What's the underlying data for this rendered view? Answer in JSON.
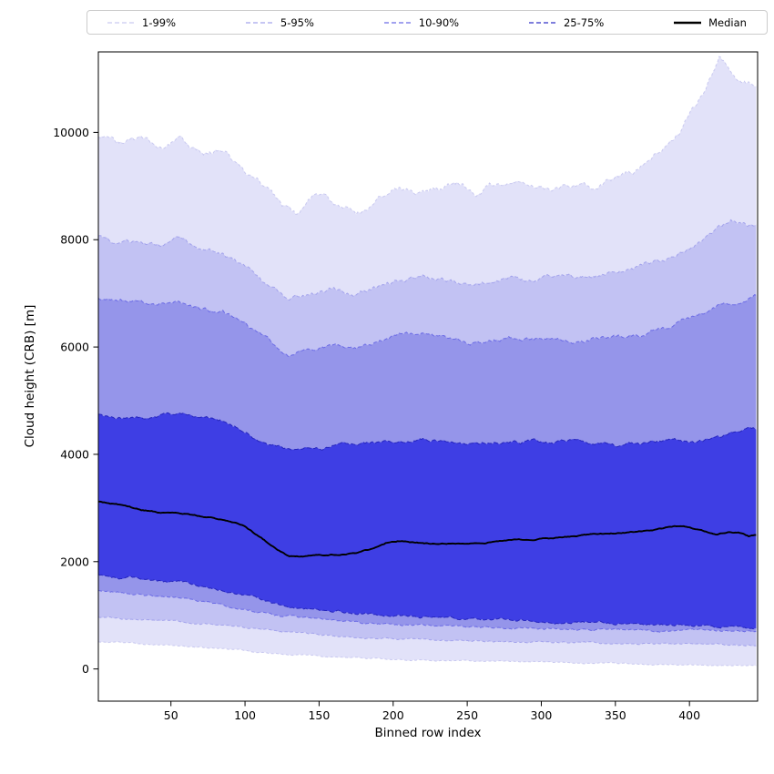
{
  "chart_data": {
    "type": "area",
    "title": "",
    "xlabel": "Binned row index",
    "ylabel": "Cloud height (CRB) [m]",
    "xlim": [
      1,
      446
    ],
    "ylim": [
      -600,
      11500
    ],
    "xticks": [
      50,
      100,
      150,
      200,
      250,
      300,
      350,
      400
    ],
    "yticks": [
      0,
      2000,
      4000,
      6000,
      8000,
      10000
    ],
    "grid": false,
    "legend_position": "top-outside",
    "legend": [
      {
        "label": "1-99%",
        "color": "#c9c9f0",
        "dash": "5 3",
        "width": 1.2
      },
      {
        "label": "5-95%",
        "color": "#a3a3ec",
        "dash": "5 3",
        "width": 1.2
      },
      {
        "label": "10-90%",
        "color": "#6b6be5",
        "dash": "5 3",
        "width": 1.2
      },
      {
        "label": "25-75%",
        "color": "#3030c8",
        "dash": "5 3",
        "width": 1.2
      },
      {
        "label": "Median",
        "color": "#000000",
        "dash": "",
        "width": 2.5
      }
    ],
    "bands": [
      {
        "label": "1-99%",
        "low": "p1",
        "high": "p99",
        "fill": "#e2e2f9",
        "edge": "#c9c9f0",
        "dash": "3 2.5"
      },
      {
        "label": "5-95%",
        "low": "p5",
        "high": "p95",
        "fill": "#c2c2f3",
        "edge": "#a3a3ec",
        "dash": "3.5 2.5"
      },
      {
        "label": "10-90%",
        "low": "p10",
        "high": "p90",
        "fill": "#9595ea",
        "edge": "#6b6be5",
        "dash": "4 2.5"
      },
      {
        "label": "25-75%",
        "low": "p25",
        "high": "p75",
        "fill": "#3e3ee4",
        "edge": "#2525bd",
        "dash": "5 2.5"
      }
    ],
    "median": {
      "label": "Median",
      "series": "p50",
      "color": "#000000",
      "width": 1.9
    },
    "series": {
      "p99": {
        "jitter": 110,
        "points": [
          [
            1,
            9900
          ],
          [
            15,
            9780
          ],
          [
            30,
            9820
          ],
          [
            45,
            9760
          ],
          [
            55,
            9950
          ],
          [
            65,
            9700
          ],
          [
            75,
            9620
          ],
          [
            85,
            9680
          ],
          [
            95,
            9450
          ],
          [
            105,
            9200
          ],
          [
            115,
            8950
          ],
          [
            125,
            8600
          ],
          [
            135,
            8450
          ],
          [
            145,
            8750
          ],
          [
            155,
            8850
          ],
          [
            165,
            8600
          ],
          [
            175,
            8500
          ],
          [
            185,
            8600
          ],
          [
            195,
            8850
          ],
          [
            205,
            8950
          ],
          [
            215,
            8900
          ],
          [
            225,
            8950
          ],
          [
            235,
            9000
          ],
          [
            245,
            9050
          ],
          [
            255,
            8850
          ],
          [
            265,
            9000
          ],
          [
            275,
            9100
          ],
          [
            285,
            9100
          ],
          [
            295,
            9050
          ],
          [
            305,
            8950
          ],
          [
            315,
            9000
          ],
          [
            325,
            8950
          ],
          [
            335,
            8900
          ],
          [
            345,
            9050
          ],
          [
            355,
            9150
          ],
          [
            365,
            9300
          ],
          [
            375,
            9550
          ],
          [
            385,
            9750
          ],
          [
            395,
            10050
          ],
          [
            405,
            10550
          ],
          [
            412,
            10900
          ],
          [
            420,
            11450
          ],
          [
            426,
            11200
          ],
          [
            432,
            11050
          ],
          [
            438,
            10950
          ],
          [
            445,
            10850
          ]
        ]
      },
      "p95": {
        "jitter": 80,
        "points": [
          [
            1,
            8050
          ],
          [
            15,
            7900
          ],
          [
            30,
            7950
          ],
          [
            45,
            7880
          ],
          [
            55,
            8000
          ],
          [
            70,
            7820
          ],
          [
            85,
            7750
          ],
          [
            100,
            7500
          ],
          [
            115,
            7100
          ],
          [
            130,
            6850
          ],
          [
            145,
            7000
          ],
          [
            160,
            7060
          ],
          [
            175,
            6950
          ],
          [
            190,
            7120
          ],
          [
            205,
            7250
          ],
          [
            220,
            7320
          ],
          [
            235,
            7260
          ],
          [
            250,
            7150
          ],
          [
            265,
            7200
          ],
          [
            280,
            7310
          ],
          [
            295,
            7260
          ],
          [
            310,
            7360
          ],
          [
            325,
            7300
          ],
          [
            340,
            7310
          ],
          [
            355,
            7400
          ],
          [
            370,
            7500
          ],
          [
            385,
            7620
          ],
          [
            400,
            7820
          ],
          [
            415,
            8100
          ],
          [
            428,
            8320
          ],
          [
            438,
            8280
          ],
          [
            445,
            8250
          ]
        ]
      },
      "p90": {
        "jitter": 70,
        "points": [
          [
            1,
            6900
          ],
          [
            20,
            6850
          ],
          [
            40,
            6800
          ],
          [
            55,
            6870
          ],
          [
            70,
            6720
          ],
          [
            85,
            6650
          ],
          [
            100,
            6420
          ],
          [
            115,
            6100
          ],
          [
            130,
            5850
          ],
          [
            145,
            5950
          ],
          [
            160,
            6020
          ],
          [
            175,
            5960
          ],
          [
            190,
            6120
          ],
          [
            205,
            6220
          ],
          [
            220,
            6260
          ],
          [
            235,
            6200
          ],
          [
            250,
            6120
          ],
          [
            265,
            6100
          ],
          [
            280,
            6160
          ],
          [
            295,
            6120
          ],
          [
            310,
            6160
          ],
          [
            325,
            6110
          ],
          [
            340,
            6160
          ],
          [
            355,
            6200
          ],
          [
            370,
            6220
          ],
          [
            385,
            6360
          ],
          [
            400,
            6500
          ],
          [
            415,
            6700
          ],
          [
            430,
            6870
          ],
          [
            445,
            6950
          ]
        ]
      },
      "p75": {
        "jitter": 60,
        "points": [
          [
            1,
            4750
          ],
          [
            20,
            4700
          ],
          [
            40,
            4660
          ],
          [
            55,
            4760
          ],
          [
            70,
            4660
          ],
          [
            85,
            4610
          ],
          [
            100,
            4450
          ],
          [
            115,
            4200
          ],
          [
            130,
            4050
          ],
          [
            145,
            4110
          ],
          [
            160,
            4160
          ],
          [
            175,
            4150
          ],
          [
            190,
            4210
          ],
          [
            205,
            4260
          ],
          [
            220,
            4310
          ],
          [
            235,
            4260
          ],
          [
            250,
            4160
          ],
          [
            265,
            4210
          ],
          [
            280,
            4260
          ],
          [
            295,
            4260
          ],
          [
            310,
            4210
          ],
          [
            325,
            4260
          ],
          [
            340,
            4210
          ],
          [
            355,
            4160
          ],
          [
            370,
            4210
          ],
          [
            385,
            4260
          ],
          [
            400,
            4210
          ],
          [
            415,
            4260
          ],
          [
            430,
            4400
          ],
          [
            445,
            4460
          ]
        ]
      },
      "p50": {
        "jitter": 20,
        "points": [
          [
            1,
            3120
          ],
          [
            15,
            3060
          ],
          [
            30,
            2960
          ],
          [
            45,
            2910
          ],
          [
            60,
            2890
          ],
          [
            75,
            2830
          ],
          [
            90,
            2760
          ],
          [
            100,
            2660
          ],
          [
            110,
            2460
          ],
          [
            120,
            2260
          ],
          [
            130,
            2090
          ],
          [
            145,
            2110
          ],
          [
            160,
            2130
          ],
          [
            175,
            2160
          ],
          [
            185,
            2230
          ],
          [
            195,
            2350
          ],
          [
            205,
            2390
          ],
          [
            215,
            2360
          ],
          [
            230,
            2330
          ],
          [
            245,
            2340
          ],
          [
            260,
            2340
          ],
          [
            275,
            2390
          ],
          [
            290,
            2410
          ],
          [
            305,
            2430
          ],
          [
            320,
            2460
          ],
          [
            335,
            2510
          ],
          [
            350,
            2530
          ],
          [
            365,
            2560
          ],
          [
            380,
            2610
          ],
          [
            390,
            2660
          ],
          [
            400,
            2630
          ],
          [
            410,
            2560
          ],
          [
            418,
            2510
          ],
          [
            426,
            2560
          ],
          [
            434,
            2540
          ],
          [
            440,
            2470
          ],
          [
            445,
            2500
          ]
        ]
      },
      "p25": {
        "jitter": 45,
        "points": [
          [
            1,
            1760
          ],
          [
            20,
            1710
          ],
          [
            40,
            1660
          ],
          [
            60,
            1610
          ],
          [
            80,
            1510
          ],
          [
            100,
            1360
          ],
          [
            115,
            1260
          ],
          [
            130,
            1160
          ],
          [
            150,
            1110
          ],
          [
            170,
            1060
          ],
          [
            190,
            1010
          ],
          [
            210,
            985
          ],
          [
            230,
            955
          ],
          [
            250,
            935
          ],
          [
            270,
            920
          ],
          [
            290,
            900
          ],
          [
            310,
            885
          ],
          [
            330,
            870
          ],
          [
            350,
            860
          ],
          [
            370,
            845
          ],
          [
            390,
            825
          ],
          [
            410,
            805
          ],
          [
            430,
            790
          ],
          [
            445,
            785
          ]
        ]
      },
      "p10": {
        "jitter": 35,
        "points": [
          [
            1,
            1460
          ],
          [
            20,
            1410
          ],
          [
            40,
            1360
          ],
          [
            60,
            1310
          ],
          [
            80,
            1210
          ],
          [
            100,
            1110
          ],
          [
            120,
            1010
          ],
          [
            140,
            955
          ],
          [
            160,
            905
          ],
          [
            180,
            855
          ],
          [
            200,
            825
          ],
          [
            220,
            805
          ],
          [
            240,
            790
          ],
          [
            260,
            780
          ],
          [
            280,
            770
          ],
          [
            300,
            760
          ],
          [
            320,
            750
          ],
          [
            340,
            740
          ],
          [
            360,
            730
          ],
          [
            380,
            720
          ],
          [
            400,
            712
          ],
          [
            420,
            705
          ],
          [
            445,
            700
          ]
        ]
      },
      "p5": {
        "jitter": 28,
        "points": [
          [
            1,
            960
          ],
          [
            20,
            935
          ],
          [
            40,
            905
          ],
          [
            60,
            875
          ],
          [
            80,
            825
          ],
          [
            100,
            765
          ],
          [
            120,
            705
          ],
          [
            140,
            665
          ],
          [
            160,
            625
          ],
          [
            180,
            595
          ],
          [
            200,
            565
          ],
          [
            220,
            545
          ],
          [
            240,
            532
          ],
          [
            260,
            522
          ],
          [
            280,
            512
          ],
          [
            300,
            502
          ],
          [
            320,
            495
          ],
          [
            340,
            488
          ],
          [
            360,
            480
          ],
          [
            380,
            470
          ],
          [
            400,
            462
          ],
          [
            420,
            456
          ],
          [
            445,
            450
          ]
        ]
      },
      "p1": {
        "jitter": 20,
        "points": [
          [
            1,
            500
          ],
          [
            20,
            480
          ],
          [
            40,
            455
          ],
          [
            60,
            425
          ],
          [
            80,
            385
          ],
          [
            100,
            335
          ],
          [
            120,
            285
          ],
          [
            140,
            252
          ],
          [
            160,
            222
          ],
          [
            180,
            200
          ],
          [
            200,
            182
          ],
          [
            220,
            168
          ],
          [
            240,
            156
          ],
          [
            260,
            146
          ],
          [
            280,
            136
          ],
          [
            300,
            126
          ],
          [
            320,
            116
          ],
          [
            340,
            106
          ],
          [
            360,
            96
          ],
          [
            380,
            86
          ],
          [
            400,
            76
          ],
          [
            420,
            66
          ],
          [
            445,
            60
          ]
        ]
      }
    }
  }
}
